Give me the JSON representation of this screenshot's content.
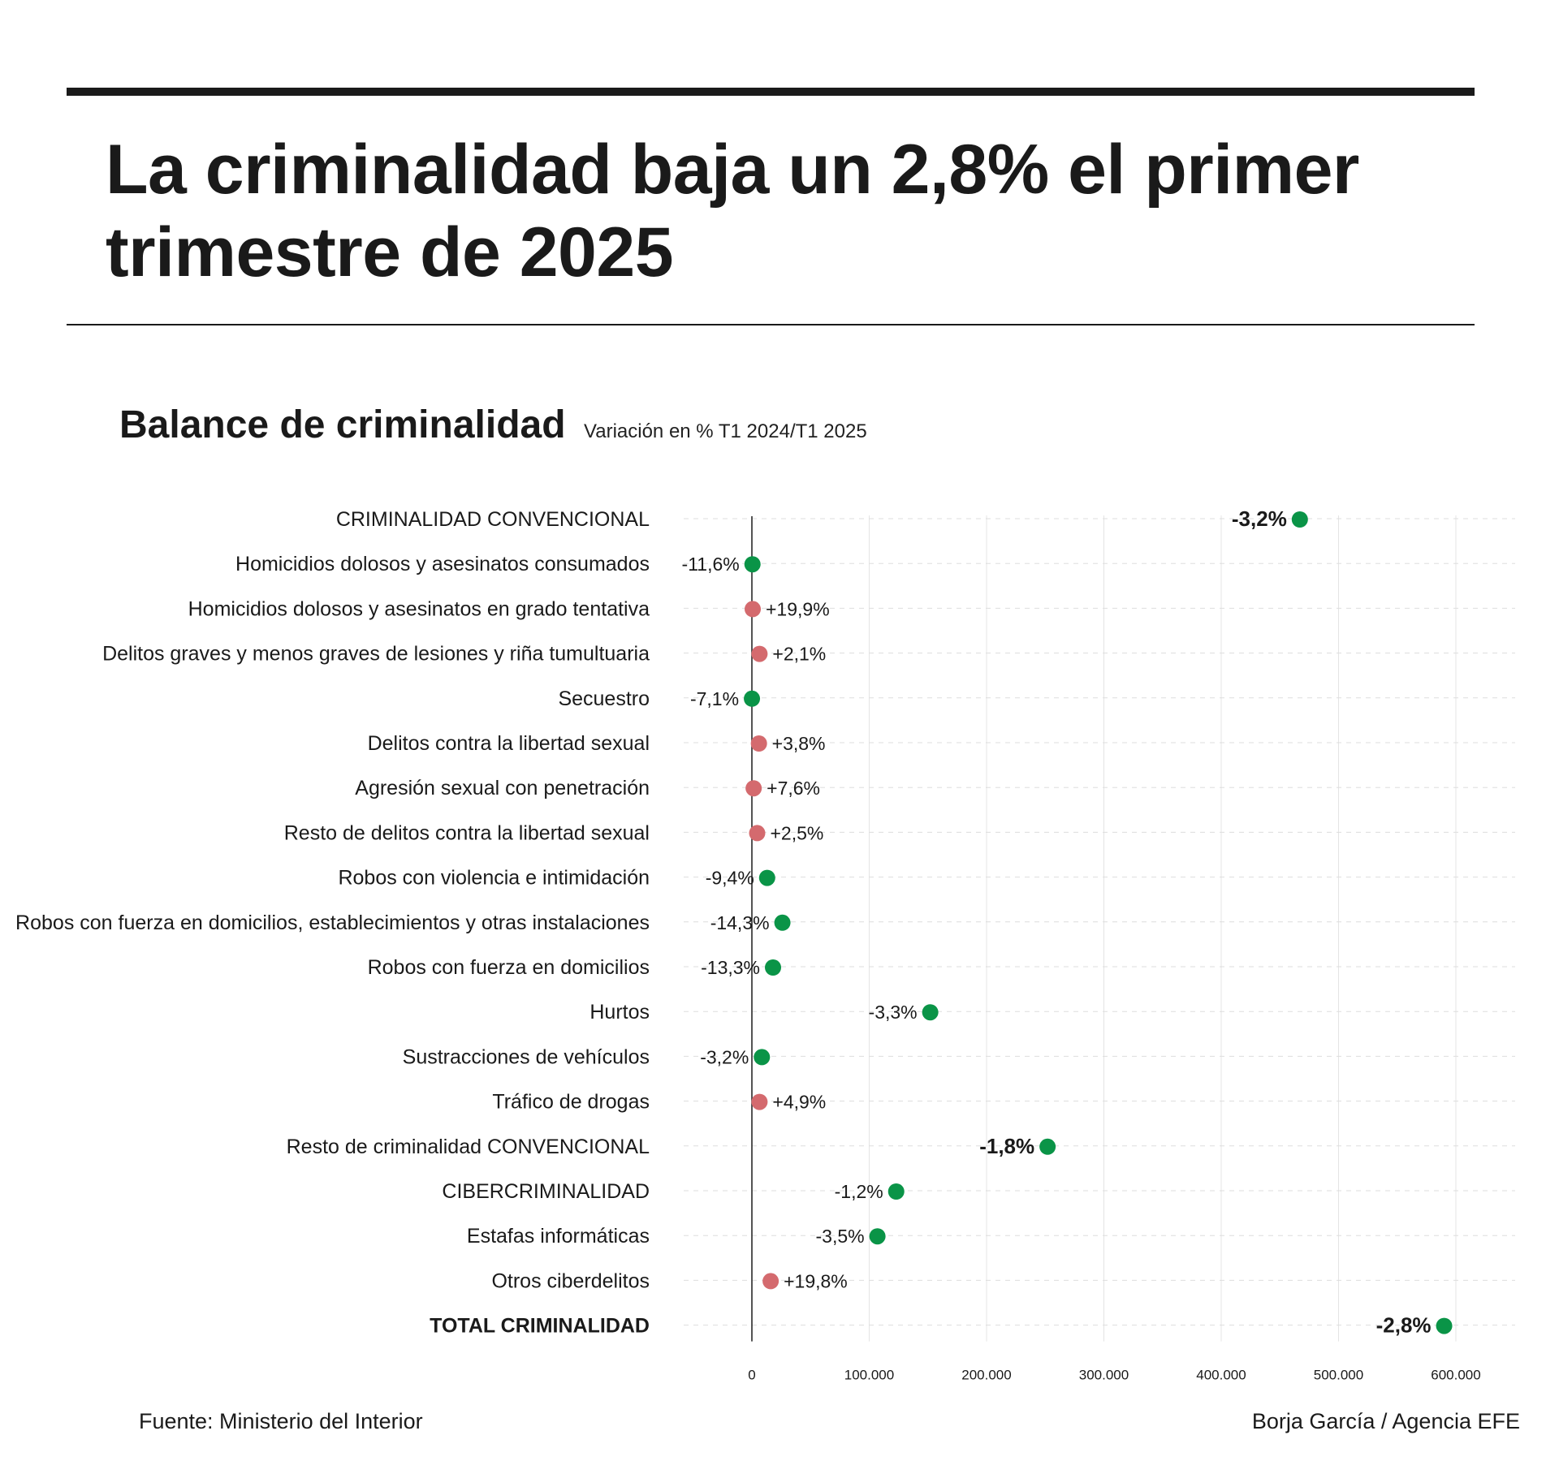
{
  "header": {
    "title": "La criminalidad baja un 2,8% el primer trimestre de 2025"
  },
  "chart_header": {
    "title": "Balance de criminalidad",
    "subtitle": "Variación en % T1 2024/T1 2025"
  },
  "footer": {
    "source": "Fuente: Ministerio del Interior",
    "credit": "Borja García / Agencia EFE"
  },
  "colors": {
    "decrease": "#0a9447",
    "increase": "#d46a6e",
    "text": "#1a1a1a"
  },
  "chart_data": {
    "type": "scatter",
    "xlim": [
      0,
      650000
    ],
    "x_ticks": [
      0,
      100000,
      200000,
      300000,
      400000,
      500000,
      600000
    ],
    "x_tick_labels": [
      "0",
      "100.000",
      "200.000",
      "300.000",
      "400.000",
      "500.000",
      "600.000"
    ],
    "grid": "vertical and horizontal dashed",
    "rows": [
      {
        "label": "CRIMINALIDAD CONVENCIONAL",
        "value": 467000,
        "change": "-3,2%",
        "trend": "down",
        "emphasis": "label-bold-value"
      },
      {
        "label": "Homicidios dolosos y asesinatos consumados",
        "value": 500,
        "change": "-11,6%",
        "trend": "down"
      },
      {
        "label": "Homicidios dolosos y asesinatos en grado tentativa",
        "value": 700,
        "change": "+19,9%",
        "trend": "up"
      },
      {
        "label": "Delitos graves y menos graves de lesiones y riña tumultuaria",
        "value": 6500,
        "change": "+2,1%",
        "trend": "up"
      },
      {
        "label": "Secuestro",
        "value": 30,
        "change": "-7,1%",
        "trend": "down"
      },
      {
        "label": "Delitos contra la libertad sexual",
        "value": 6000,
        "change": "+3,8%",
        "trend": "up"
      },
      {
        "label": "Agresión sexual con penetración",
        "value": 1500,
        "change": "+7,6%",
        "trend": "up"
      },
      {
        "label": "Resto de delitos contra la libertad sexual",
        "value": 4500,
        "change": "+2,5%",
        "trend": "up"
      },
      {
        "label": "Robos con violencia e intimidación",
        "value": 13000,
        "change": "-9,4%",
        "trend": "down"
      },
      {
        "label": "Robos con fuerza en domicilios, establecimientos y otras instalaciones",
        "value": 26000,
        "change": "-14,3%",
        "trend": "down"
      },
      {
        "label": "Robos con fuerza en domicilios",
        "value": 18000,
        "change": "-13,3%",
        "trend": "down"
      },
      {
        "label": "Hurtos",
        "value": 152000,
        "change": "-3,3%",
        "trend": "down"
      },
      {
        "label": "Sustracciones de vehículos",
        "value": 8500,
        "change": "-3,2%",
        "trend": "down"
      },
      {
        "label": "Tráfico de drogas",
        "value": 6500,
        "change": "+4,9%",
        "trend": "up"
      },
      {
        "label": "Resto de criminalidad CONVENCIONAL",
        "value": 252000,
        "change": "-1,8%",
        "trend": "down",
        "emphasis": "value-bold"
      },
      {
        "label": "CIBERCRIMINALIDAD",
        "value": 123000,
        "change": "-1,2%",
        "trend": "down"
      },
      {
        "label": "Estafas informáticas",
        "value": 107000,
        "change": "-3,5%",
        "trend": "down"
      },
      {
        "label": "Otros ciberdelitos",
        "value": 16000,
        "change": "+19,8%",
        "trend": "up"
      },
      {
        "label": "TOTAL CRIMINALIDAD",
        "value": 590000,
        "change": "-2,8%",
        "trend": "down",
        "emphasis": "both-bold"
      }
    ]
  }
}
